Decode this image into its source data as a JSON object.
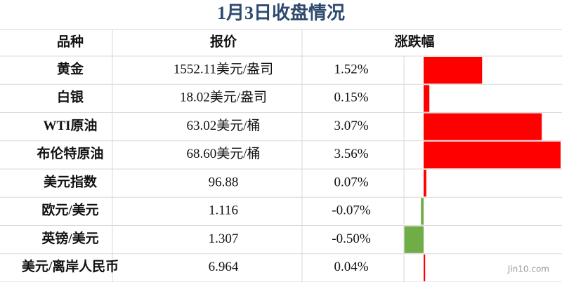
{
  "table": {
    "title": "1月3日收盘情况",
    "columns": [
      "品种",
      "报价",
      "涨跌幅"
    ],
    "rows": [
      {
        "name": "黄金",
        "price": "1552.11美元/盎司",
        "change": {
          "value": 1.52,
          "label": "1.52%"
        }
      },
      {
        "name": "白银",
        "price": "18.02美元/盎司",
        "change": {
          "value": 0.15,
          "label": "0.15%"
        }
      },
      {
        "name": "WTI原油",
        "price": "63.02美元/桶",
        "change": {
          "value": 3.07,
          "label": "3.07%"
        }
      },
      {
        "name": "布伦特原油",
        "price": "68.60美元/桶",
        "change": {
          "value": 3.56,
          "label": "3.56%"
        }
      },
      {
        "name": "美元指数",
        "price": "96.88",
        "change": {
          "value": 0.07,
          "label": "0.07%"
        }
      },
      {
        "name": "欧元/美元",
        "price": "1.116",
        "change": {
          "value": -0.07,
          "label": "-0.07%"
        }
      },
      {
        "name": "英镑/美元",
        "price": "1.307",
        "change": {
          "value": -0.5,
          "label": "-0.50%"
        }
      },
      {
        "name": "美元/离岸人民币",
        "price": "6.964",
        "change": {
          "value": 0.04,
          "label": "0.04%"
        }
      }
    ],
    "up_color": "#ff0000",
    "down_color": "#70ad47",
    "watermark": "Jin10.com"
  }
}
